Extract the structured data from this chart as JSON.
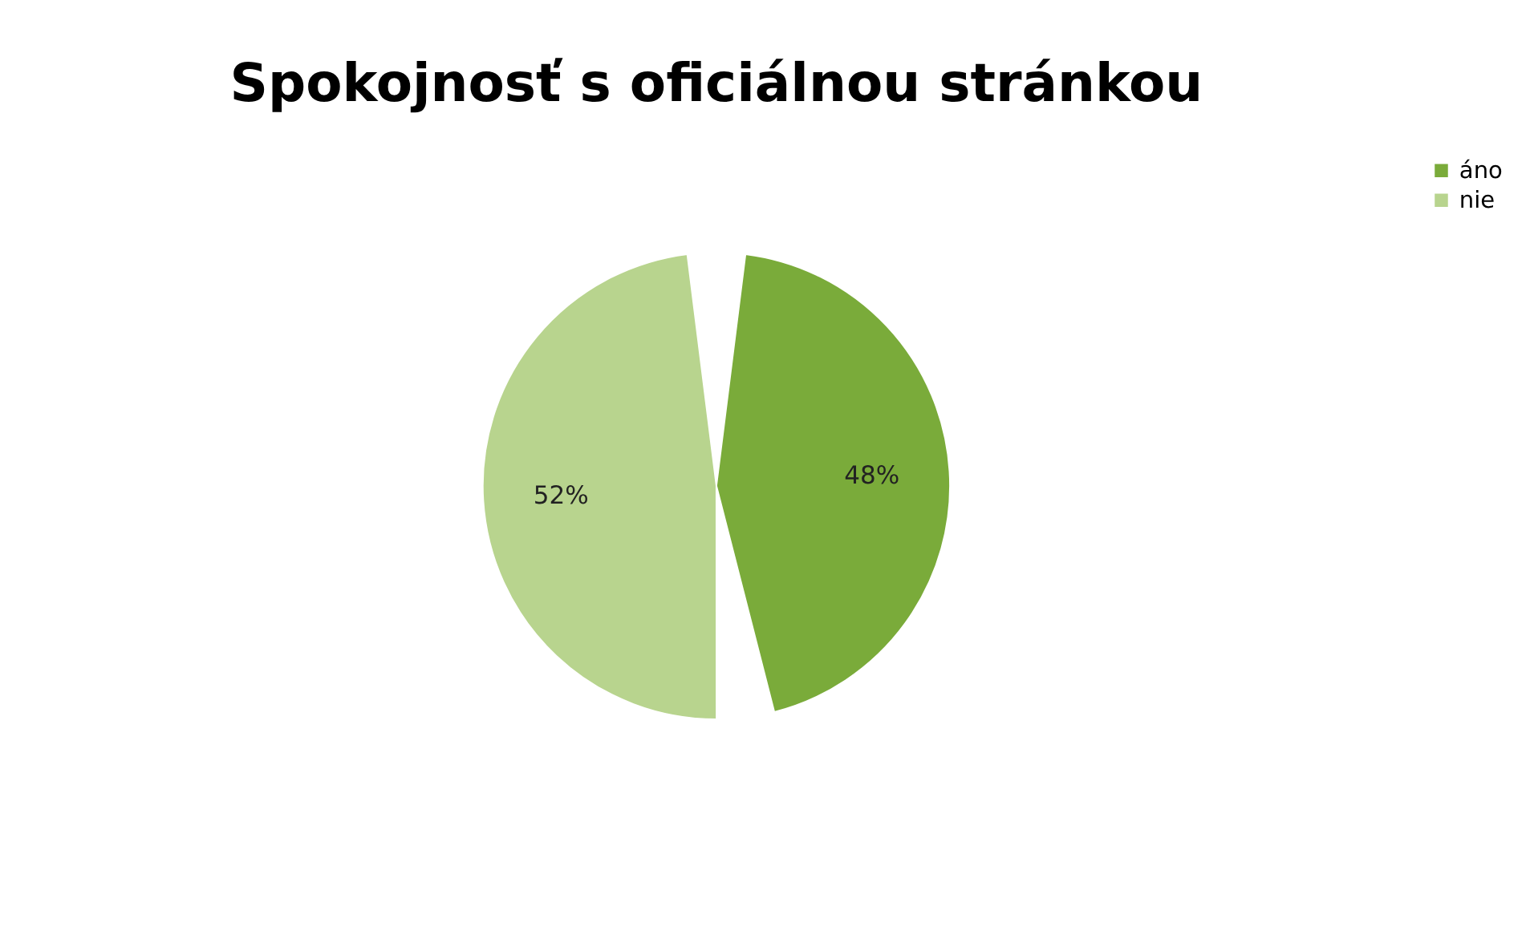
{
  "chart_data": {
    "type": "pie",
    "title": "Spokojnosť s oficiálnou stránkou",
    "categories": [
      "áno",
      "nie"
    ],
    "values": [
      48,
      52
    ],
    "colors": [
      "#7aab3a",
      "#b8d48e"
    ],
    "value_labels": [
      "48%",
      "52%"
    ],
    "legend": "right"
  }
}
